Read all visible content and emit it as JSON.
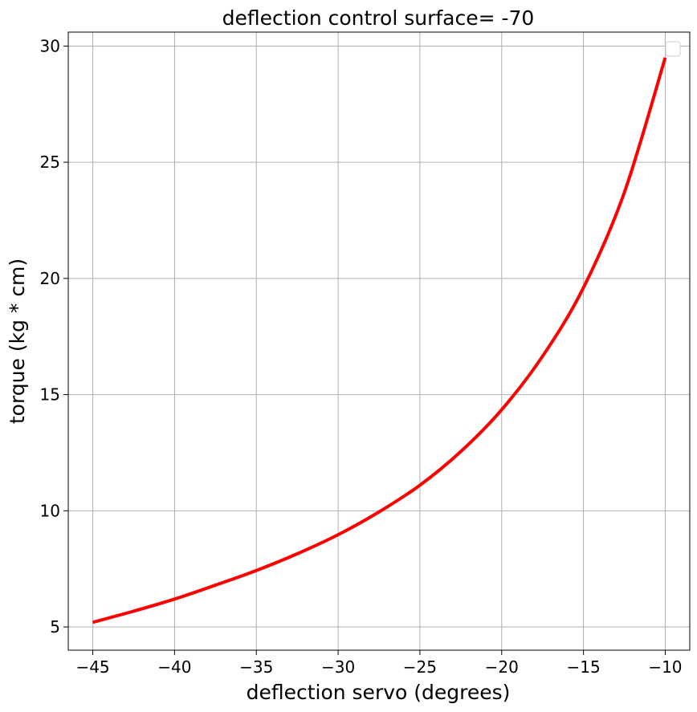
{
  "chart_data": {
    "type": "line",
    "title": "deflection control surface= -70",
    "xlabel": "deflection servo (degrees)",
    "ylabel": "torque (kg * cm)",
    "xlim": [
      -46.5,
      -8.5
    ],
    "ylim": [
      4,
      30.6
    ],
    "xticks": [
      -45,
      -40,
      -35,
      -30,
      -25,
      -20,
      -15,
      -10
    ],
    "xtick_labels": [
      "−45",
      "−40",
      "−35",
      "−30",
      "−25",
      "−20",
      "−15",
      "−10"
    ],
    "yticks": [
      5,
      10,
      15,
      20,
      25,
      30
    ],
    "ytick_labels": [
      "5",
      "10",
      "15",
      "20",
      "25",
      "30"
    ],
    "grid": true,
    "legend": "top-right (empty)",
    "series": [
      {
        "color": "#ff0000",
        "x": [
          -45,
          -42.5,
          -40,
          -37.5,
          -35,
          -32.5,
          -30,
          -27.5,
          -25,
          -22.5,
          -20,
          -17.5,
          -15,
          -12.5,
          -10
        ],
        "y": [
          5.2,
          5.68,
          6.2,
          6.8,
          7.43,
          8.15,
          8.97,
          9.95,
          11.1,
          12.55,
          14.35,
          16.65,
          19.6,
          23.7,
          29.5
        ]
      }
    ]
  }
}
